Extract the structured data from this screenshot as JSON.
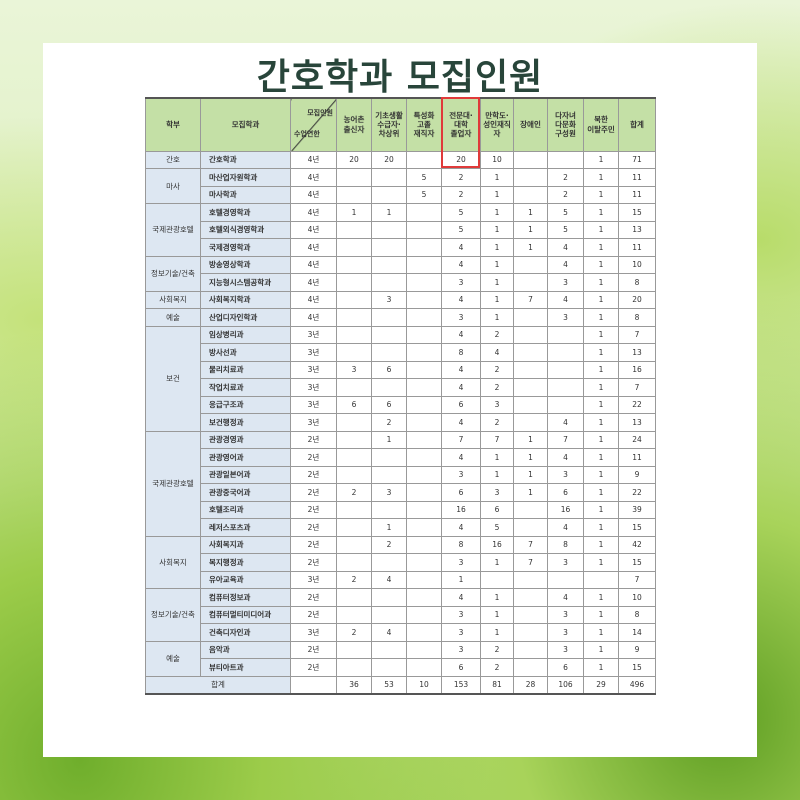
{
  "title": "간호학과 모집인원",
  "headers": {
    "faculty": "학부",
    "dept": "모집학과",
    "diag_top": "모집인원",
    "diag_bottom": "수업연한",
    "cols": [
      "농어촌\n출신자",
      "기초생활\n수급자·\n차상위",
      "특성화\n고졸\n재직자",
      "전문대·\n대학\n졸업자",
      "만학도·\n성인재직\n자",
      "장애인",
      "다자녀\n다문화\n구성원",
      "북한\n이탈주민",
      "합계"
    ]
  },
  "highlight_column": "전문대·대학졸업자",
  "highlight_color": "#e03a3a",
  "groups": [
    {
      "faculty": "간호",
      "rows": [
        [
          "간호학과",
          "4년",
          "20",
          "20",
          "",
          "20",
          "10",
          "",
          "",
          "1",
          "71"
        ]
      ]
    },
    {
      "faculty": "마사",
      "rows": [
        [
          "마산업자원학과",
          "4년",
          "",
          "",
          "5",
          "2",
          "1",
          "",
          "2",
          "1",
          "11"
        ],
        [
          "마사학과",
          "4년",
          "",
          "",
          "5",
          "2",
          "1",
          "",
          "2",
          "1",
          "11"
        ]
      ]
    },
    {
      "faculty": "국제관광호텔",
      "rows": [
        [
          "호텔경영학과",
          "4년",
          "1",
          "1",
          "",
          "5",
          "1",
          "1",
          "5",
          "1",
          "15"
        ],
        [
          "호텔외식경영학과",
          "4년",
          "",
          "",
          "",
          "5",
          "1",
          "1",
          "5",
          "1",
          "13"
        ],
        [
          "국제경영학과",
          "4년",
          "",
          "",
          "",
          "4",
          "1",
          "1",
          "4",
          "1",
          "11"
        ]
      ]
    },
    {
      "faculty": "정보기술/건축",
      "rows": [
        [
          "방송영상학과",
          "4년",
          "",
          "",
          "",
          "4",
          "1",
          "",
          "4",
          "1",
          "10"
        ],
        [
          "지능형시스템공학과",
          "4년",
          "",
          "",
          "",
          "3",
          "1",
          "",
          "3",
          "1",
          "8"
        ]
      ]
    },
    {
      "faculty": "사회복지",
      "rows": [
        [
          "사회복지학과",
          "4년",
          "",
          "3",
          "",
          "4",
          "1",
          "7",
          "4",
          "1",
          "20"
        ]
      ]
    },
    {
      "faculty": "예술",
      "rows": [
        [
          "산업디자인학과",
          "4년",
          "",
          "",
          "",
          "3",
          "1",
          "",
          "3",
          "1",
          "8"
        ]
      ]
    },
    {
      "faculty": "보건",
      "rows": [
        [
          "임상병리과",
          "3년",
          "",
          "",
          "",
          "4",
          "2",
          "",
          "",
          "1",
          "7"
        ],
        [
          "방사선과",
          "3년",
          "",
          "",
          "",
          "8",
          "4",
          "",
          "",
          "1",
          "13"
        ],
        [
          "물리치료과",
          "3년",
          "3",
          "6",
          "",
          "4",
          "2",
          "",
          "",
          "1",
          "16"
        ],
        [
          "작업치료과",
          "3년",
          "",
          "",
          "",
          "4",
          "2",
          "",
          "",
          "1",
          "7"
        ],
        [
          "응급구조과",
          "3년",
          "6",
          "6",
          "",
          "6",
          "3",
          "",
          "",
          "1",
          "22"
        ],
        [
          "보건행정과",
          "3년",
          "",
          "2",
          "",
          "4",
          "2",
          "",
          "4",
          "1",
          "13"
        ]
      ]
    },
    {
      "faculty": "국제관광호텔",
      "rows": [
        [
          "관광경영과",
          "2년",
          "",
          "1",
          "",
          "7",
          "7",
          "1",
          "7",
          "1",
          "24"
        ],
        [
          "관광영어과",
          "2년",
          "",
          "",
          "",
          "4",
          "1",
          "1",
          "4",
          "1",
          "11"
        ],
        [
          "관광일본어과",
          "2년",
          "",
          "",
          "",
          "3",
          "1",
          "1",
          "3",
          "1",
          "9"
        ],
        [
          "관광중국어과",
          "2년",
          "2",
          "3",
          "",
          "6",
          "3",
          "1",
          "6",
          "1",
          "22"
        ],
        [
          "호텔조리과",
          "2년",
          "",
          "",
          "",
          "16",
          "6",
          "",
          "16",
          "1",
          "39"
        ],
        [
          "레저스포츠과",
          "2년",
          "",
          "1",
          "",
          "4",
          "5",
          "",
          "4",
          "1",
          "15"
        ]
      ]
    },
    {
      "faculty": "사회복지",
      "rows": [
        [
          "사회복지과",
          "2년",
          "",
          "2",
          "",
          "8",
          "16",
          "7",
          "8",
          "1",
          "42"
        ],
        [
          "복지행정과",
          "2년",
          "",
          "",
          "",
          "3",
          "1",
          "7",
          "3",
          "1",
          "15"
        ],
        [
          "유아교육과",
          "3년",
          "2",
          "4",
          "",
          "1",
          "",
          "",
          "",
          "",
          "7"
        ]
      ]
    },
    {
      "faculty": "정보기술/건축",
      "rows": [
        [
          "컴퓨터정보과",
          "2년",
          "",
          "",
          "",
          "4",
          "1",
          "",
          "4",
          "1",
          "10"
        ],
        [
          "컴퓨터멀티미디어과",
          "2년",
          "",
          "",
          "",
          "3",
          "1",
          "",
          "3",
          "1",
          "8"
        ],
        [
          "건축디자인과",
          "3년",
          "2",
          "4",
          "",
          "3",
          "1",
          "",
          "3",
          "1",
          "14"
        ]
      ]
    },
    {
      "faculty": "예술",
      "rows": [
        [
          "음악과",
          "2년",
          "",
          "",
          "",
          "3",
          "2",
          "",
          "3",
          "1",
          "9"
        ],
        [
          "뷰티아트과",
          "2년",
          "",
          "",
          "",
          "6",
          "2",
          "",
          "6",
          "1",
          "15"
        ]
      ]
    }
  ],
  "total": {
    "label": "합계",
    "values": [
      "",
      "36",
      "53",
      "10",
      "153",
      "81",
      "28",
      "106",
      "29",
      "496"
    ]
  }
}
